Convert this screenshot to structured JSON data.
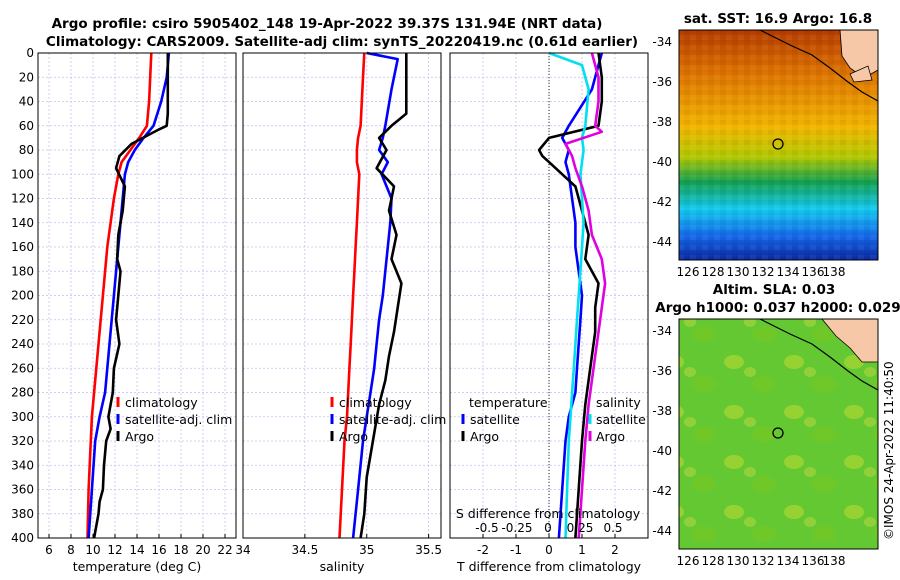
{
  "header": {
    "title_line1": "Argo profile: csiro 5905402_148 19-Apr-2022 39.37S 131.94E (NRT data)",
    "title_line2": "Climatology: CARS2009. Satellite-adj clim: synTS_20220419.nc (0.61d earlier)"
  },
  "copyright": "©IMOS 24-Apr-2022 11:40:50",
  "colors": {
    "climatology": "#ff0000",
    "satellite": "#0000ff",
    "argo": "#000000",
    "sat_diff": "#00e0f0",
    "sal_diff": "#e000e0"
  },
  "chart_data": [
    {
      "id": "temperature",
      "type": "line",
      "xlabel": "temperature (deg C)",
      "xlim": [
        5,
        23
      ],
      "xticks": [
        6,
        8,
        10,
        12,
        14,
        16,
        18,
        20,
        22
      ],
      "ylim": [
        0,
        400
      ],
      "yticks": [
        0,
        20,
        40,
        60,
        80,
        100,
        120,
        140,
        160,
        180,
        200,
        220,
        240,
        260,
        280,
        300,
        320,
        340,
        360,
        380,
        400
      ],
      "legend": [
        "climatology",
        "satellite-adj. clim",
        "Argo"
      ],
      "series": [
        {
          "name": "climatology",
          "color": "#ff0000",
          "x": [
            15.3,
            15.2,
            15.1,
            14.9,
            14.2,
            13.4,
            12.6,
            12.3,
            11.9,
            11.6,
            11.3,
            11.1,
            10.9,
            10.7,
            10.5,
            10.3,
            10.1,
            9.9,
            9.8,
            9.6,
            9.5
          ],
          "y": [
            0,
            20,
            40,
            60,
            70,
            80,
            90,
            100,
            120,
            140,
            160,
            180,
            200,
            220,
            240,
            260,
            280,
            300,
            320,
            360,
            400
          ]
        },
        {
          "name": "satellite-adj. clim",
          "color": "#0000ff",
          "x": [
            16.9,
            16.7,
            16.2,
            15.5,
            14.6,
            13.8,
            13.2,
            12.9,
            12.7,
            12.5,
            12.3,
            12.1,
            11.9,
            11.7,
            11.5,
            11.3,
            11.1,
            10.6,
            10.2,
            9.9,
            9.6
          ],
          "y": [
            0,
            20,
            40,
            60,
            70,
            80,
            90,
            100,
            120,
            140,
            160,
            180,
            200,
            220,
            240,
            260,
            280,
            300,
            320,
            360,
            400
          ]
        },
        {
          "name": "Argo",
          "color": "#000000",
          "x": [
            16.8,
            16.8,
            16.8,
            16.7,
            16.0,
            13.5,
            12.4,
            12.1,
            12.9,
            12.7,
            12.3,
            12.2,
            12.5,
            12.3,
            12.1,
            12.4,
            11.9,
            11.8,
            11.4,
            11.6,
            11.2,
            11.0,
            10.9,
            10.6,
            10.5,
            10.3,
            10.1
          ],
          "y": [
            0,
            30,
            50,
            60,
            63,
            75,
            85,
            95,
            110,
            130,
            150,
            170,
            180,
            200,
            220,
            240,
            260,
            280,
            300,
            310,
            320,
            340,
            360,
            370,
            380,
            390,
            400
          ]
        }
      ]
    },
    {
      "id": "salinity",
      "type": "line",
      "xlabel": "salinity",
      "xlim": [
        34,
        35.6
      ],
      "xticks": [
        "34",
        "34.5",
        "35",
        "35.5"
      ],
      "ylim": [
        0,
        400
      ],
      "legend": [
        "climatology",
        "satellite-adj. clim",
        "Argo"
      ],
      "series": [
        {
          "name": "climatology",
          "color": "#ff0000",
          "x": [
            34.98,
            34.97,
            34.96,
            34.95,
            34.93,
            34.92,
            34.92,
            34.94,
            34.93,
            34.92,
            34.91,
            34.9,
            34.89,
            34.88,
            34.87,
            34.86,
            34.85,
            34.84,
            34.82,
            34.8,
            34.78
          ],
          "y": [
            0,
            20,
            40,
            60,
            70,
            80,
            90,
            100,
            120,
            140,
            160,
            180,
            200,
            220,
            240,
            260,
            280,
            300,
            320,
            360,
            400
          ]
        },
        {
          "name": "satellite-adj. clim",
          "color": "#0000ff",
          "x": [
            35.0,
            35.25,
            35.2,
            35.15,
            35.13,
            35.1,
            35.17,
            35.12,
            35.2,
            35.19,
            35.17,
            35.15,
            35.13,
            35.1,
            35.08,
            35.06,
            35.03,
            35.0,
            34.97,
            34.93,
            34.89
          ],
          "y": [
            0,
            5,
            30,
            60,
            70,
            80,
            90,
            100,
            120,
            140,
            160,
            180,
            200,
            220,
            240,
            260,
            280,
            300,
            320,
            360,
            400
          ]
        },
        {
          "name": "Argo",
          "color": "#000000",
          "x": [
            35.32,
            35.32,
            35.32,
            35.2,
            35.1,
            35.16,
            35.08,
            35.22,
            35.18,
            35.24,
            35.2,
            35.28,
            35.25,
            35.22,
            35.18,
            35.15,
            35.1,
            35.05,
            35.0,
            34.98,
            34.95
          ],
          "y": [
            0,
            20,
            50,
            60,
            70,
            80,
            95,
            110,
            130,
            150,
            170,
            190,
            210,
            230,
            250,
            270,
            290,
            320,
            350,
            380,
            400
          ]
        }
      ]
    },
    {
      "id": "difference",
      "type": "line",
      "xlabel": "T difference from climatology",
      "xlim": [
        -3,
        3
      ],
      "xticks": [
        "-2",
        "-1",
        "0",
        "1",
        "2"
      ],
      "top_label": "S difference from climatology",
      "top_ticks": [
        "-0.5",
        "-0.25",
        "0",
        "0.25",
        "0.5"
      ],
      "ylim": [
        0,
        400
      ],
      "legend_left": [
        "temperature",
        "satellite",
        "Argo"
      ],
      "legend_right": [
        "salinity",
        "satellite",
        "Argo"
      ],
      "series": [
        {
          "name": "T satellite",
          "color": "#0000ff",
          "x": [
            1.6,
            1.5,
            1.3,
            0.6,
            0.4,
            0.6,
            0.5,
            0.6,
            0.7,
            0.8,
            0.8,
            0.9,
            1.0,
            0.95,
            0.9,
            0.85,
            0.8,
            0.6,
            0.5,
            0.4,
            0.3
          ],
          "y": [
            0,
            10,
            30,
            60,
            70,
            80,
            90,
            100,
            120,
            140,
            160,
            180,
            200,
            220,
            240,
            260,
            280,
            300,
            320,
            360,
            400
          ]
        },
        {
          "name": "T Argo",
          "color": "#000000",
          "x": [
            1.5,
            1.6,
            1.6,
            1.5,
            0.0,
            -0.3,
            -0.2,
            0.0,
            0.8,
            1.0,
            1.2,
            1.1,
            1.5,
            1.4,
            1.4,
            1.3,
            1.2,
            1.1,
            1.0,
            0.9,
            0.8
          ],
          "y": [
            0,
            20,
            40,
            60,
            70,
            80,
            85,
            90,
            110,
            130,
            150,
            170,
            190,
            210,
            230,
            250,
            270,
            290,
            320,
            360,
            400
          ]
        },
        {
          "name": "S satellite",
          "color": "#00e0f0",
          "x": [
            0.0,
            1.0,
            1.2,
            1.1,
            1.0,
            1.05,
            1.0,
            0.95,
            1.0,
            1.05,
            1.0,
            0.95,
            0.9,
            0.85,
            0.8,
            0.75,
            0.7,
            0.65,
            0.6,
            0.55,
            0.5
          ],
          "y": [
            0,
            10,
            30,
            60,
            70,
            80,
            90,
            100,
            120,
            140,
            160,
            180,
            200,
            220,
            240,
            260,
            280,
            300,
            320,
            360,
            400
          ]
        },
        {
          "name": "S Argo",
          "color": "#e000e0",
          "x": [
            1.3,
            1.5,
            1.5,
            1.4,
            1.6,
            0.5,
            0.7,
            0.8,
            1.0,
            1.2,
            1.3,
            1.6,
            1.7,
            1.6,
            1.5,
            1.4,
            1.3,
            1.2,
            1.1,
            1.0,
            0.9
          ],
          "y": [
            0,
            20,
            40,
            60,
            65,
            75,
            85,
            95,
            110,
            130,
            150,
            170,
            190,
            210,
            230,
            250,
            270,
            290,
            320,
            360,
            400
          ]
        }
      ]
    },
    {
      "id": "sst_map",
      "type": "heatmap",
      "title": "sat. SST: 16.9 Argo: 16.8",
      "xticks": [
        "126",
        "128",
        "130",
        "132",
        "134",
        "136",
        "138"
      ],
      "yticks": [
        "-34",
        "-36",
        "-38",
        "-40",
        "-42",
        "-44"
      ],
      "marker": {
        "lon": 131.94,
        "lat": -39.37
      }
    },
    {
      "id": "sla_map",
      "type": "heatmap",
      "title_line1": "Altim. SLA: 0.03",
      "title_line2": "Argo h1000: 0.037 h2000: 0.029",
      "xticks": [
        "126",
        "128",
        "130",
        "132",
        "134",
        "136",
        "138"
      ],
      "yticks": [
        "-34",
        "-36",
        "-38",
        "-40",
        "-42",
        "-44"
      ],
      "marker": {
        "lon": 131.94,
        "lat": -39.37
      }
    }
  ]
}
